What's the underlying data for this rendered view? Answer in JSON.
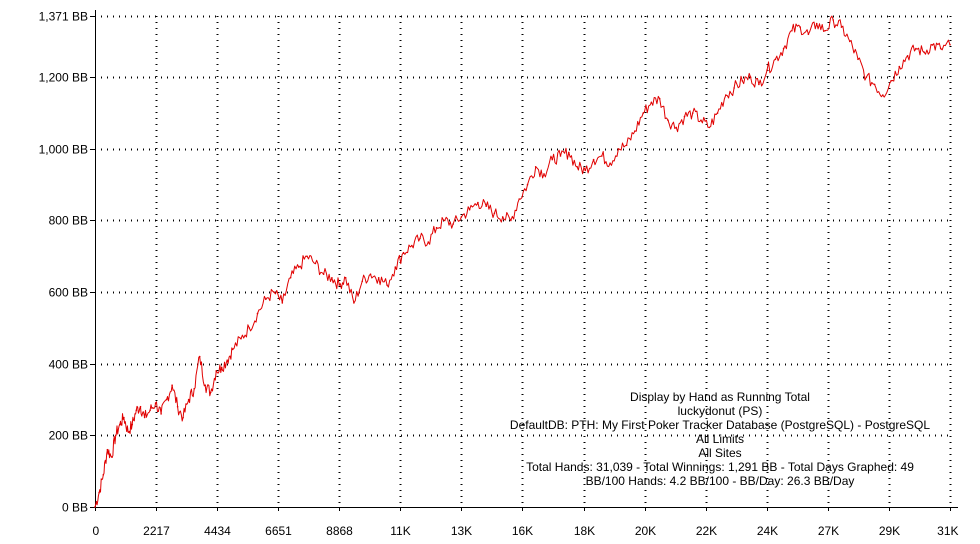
{
  "chart_data": {
    "type": "line",
    "x_ticks": [
      {
        "value": 0,
        "label": "0"
      },
      {
        "value": 2217,
        "label": "2217"
      },
      {
        "value": 4434,
        "label": "4434"
      },
      {
        "value": 6651,
        "label": "6651"
      },
      {
        "value": 8868,
        "label": "8868"
      },
      {
        "value": 11085,
        "label": "11K"
      },
      {
        "value": 13302,
        "label": "13K"
      },
      {
        "value": 15519,
        "label": "16K"
      },
      {
        "value": 17736,
        "label": "18K"
      },
      {
        "value": 19953,
        "label": "20K"
      },
      {
        "value": 22170,
        "label": "22K"
      },
      {
        "value": 24387,
        "label": "24K"
      },
      {
        "value": 26604,
        "label": "27K"
      },
      {
        "value": 28821,
        "label": "29K"
      },
      {
        "value": 31039,
        "label": "31K"
      }
    ],
    "y_ticks": [
      {
        "value": 0,
        "label": "0 BB"
      },
      {
        "value": 200,
        "label": "200 BB"
      },
      {
        "value": 400,
        "label": "400 BB"
      },
      {
        "value": 600,
        "label": "600 BB"
      },
      {
        "value": 800,
        "label": "800 BB"
      },
      {
        "value": 1000,
        "label": "1,000 BB"
      },
      {
        "value": 1200,
        "label": "1,200 BB"
      },
      {
        "value": 1371,
        "label": "1,371 BB"
      }
    ],
    "xlim": [
      0,
      31039
    ],
    "ylim": [
      0,
      1371
    ],
    "grid": true,
    "series": [
      {
        "color": "#e00000",
        "x": [
          0,
          150,
          300,
          450,
          600,
          750,
          900,
          1050,
          1200,
          1350,
          1500,
          1650,
          1800,
          2000,
          2200,
          2400,
          2600,
          2800,
          3000,
          3200,
          3400,
          3600,
          3800,
          4000,
          4200,
          4400,
          4600,
          4800,
          5000,
          5300,
          5600,
          5900,
          6200,
          6500,
          6800,
          7100,
          7400,
          7700,
          8000,
          8300,
          8600,
          8868,
          9100,
          9400,
          9700,
          10000,
          10300,
          10600,
          10900,
          11200,
          11500,
          11800,
          12100,
          12400,
          12700,
          13000,
          13300,
          13600,
          13900,
          14200,
          14500,
          14800,
          15100,
          15400,
          15700,
          16000,
          16300,
          16600,
          16900,
          17200,
          17500,
          17800,
          18100,
          18400,
          18700,
          19000,
          19300,
          19600,
          19900,
          20200,
          20500,
          20800,
          21100,
          21400,
          21700,
          22000,
          22300,
          22600,
          22900,
          23200,
          23500,
          23800,
          24100,
          24400,
          24700,
          25000,
          25300,
          25600,
          25900,
          26200,
          26500,
          26800,
          27100,
          27400,
          27700,
          28000,
          28300,
          28600,
          28900,
          29200,
          29500,
          29800,
          30100,
          30400,
          30700,
          31039
        ],
        "y": [
          0,
          40,
          90,
          160,
          140,
          200,
          230,
          250,
          210,
          230,
          270,
          280,
          250,
          270,
          290,
          260,
          300,
          340,
          280,
          250,
          300,
          330,
          420,
          340,
          320,
          380,
          390,
          410,
          440,
          470,
          500,
          540,
          580,
          600,
          570,
          640,
          670,
          700,
          680,
          650,
          640,
          620,
          640,
          570,
          630,
          650,
          640,
          620,
          670,
          710,
          730,
          750,
          740,
          780,
          800,
          790,
          810,
          830,
          850,
          840,
          820,
          810,
          800,
          860,
          900,
          950,
          930,
          970,
          980,
          990,
          950,
          940,
          970,
          980,
          960,
          1000,
          1010,
          1050,
          1100,
          1130,
          1140,
          1080,
          1060,
          1090,
          1100,
          1080,
          1060,
          1100,
          1150,
          1170,
          1190,
          1200,
          1180,
          1220,
          1250,
          1280,
          1330,
          1340,
          1320,
          1350,
          1330,
          1360,
          1340,
          1300,
          1250,
          1200,
          1180,
          1150,
          1190,
          1230,
          1260,
          1280,
          1270,
          1290,
          1280,
          1291
        ]
      }
    ],
    "info_lines": [
      "Display by Hand as Running Total",
      "luckydonut (PS)",
      "DefaultDB: PTH: My First Poker Tracker Database (PostgreSQL) - PostgreSQL",
      "All Limits",
      "All Sites",
      "Total Hands: 31,039 - Total Winnings: 1,291 BB - Total Days Graphed: 49",
      "BB/100 Hands: 4.2 BB/100 - BB/Day: 26.3 BB/Day"
    ]
  }
}
